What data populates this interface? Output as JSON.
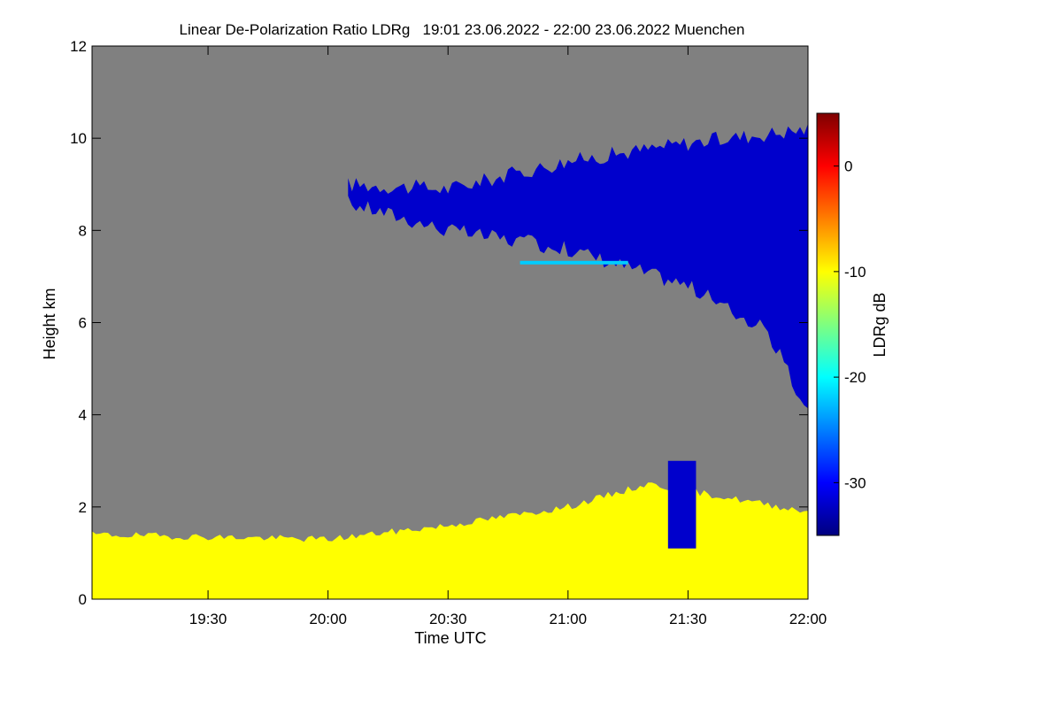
{
  "chart_data": {
    "type": "heatmap",
    "title": "Linear De-Polarization Ratio LDRg   19:01 23.06.2022 - 22:00 23.06.2022 Muenchen",
    "xlabel": "Time UTC",
    "ylabel": "Height km",
    "colorbar_label": "LDRg dB",
    "x_unit": "minutes after 19:00 UTC",
    "xlim": [
      1,
      180
    ],
    "ylim": [
      0,
      12
    ],
    "x_ticks": [
      {
        "value": 30,
        "label": "19:30"
      },
      {
        "value": 60,
        "label": "20:00"
      },
      {
        "value": 90,
        "label": "20:30"
      },
      {
        "value": 120,
        "label": "21:00"
      },
      {
        "value": 150,
        "label": "21:30"
      },
      {
        "value": 180,
        "label": "22:00"
      }
    ],
    "y_ticks": [
      {
        "value": 0,
        "label": "0"
      },
      {
        "value": 2,
        "label": "2"
      },
      {
        "value": 4,
        "label": "4"
      },
      {
        "value": 6,
        "label": "6"
      },
      {
        "value": 8,
        "label": "8"
      },
      {
        "value": 10,
        "label": "10"
      },
      {
        "value": 12,
        "label": "12"
      }
    ],
    "colorbar_range": [
      -35,
      5
    ],
    "colorbar_ticks": [
      {
        "value": 0,
        "label": "0"
      },
      {
        "value": -10,
        "label": "-10"
      },
      {
        "value": -20,
        "label": "-20"
      },
      {
        "value": -30,
        "label": "-30"
      }
    ],
    "background_color": "#808080",
    "colormap": [
      "#00007f",
      "#0000ff",
      "#007fff",
      "#00ffff",
      "#7fff7f",
      "#ffff00",
      "#ff7f00",
      "#ff0000",
      "#7f0000"
    ],
    "features": [
      {
        "name": "cirrus cloud",
        "ldr_db": -32,
        "t_start": 65,
        "t_end": 180,
        "top_km": [
          [
            65,
            9.0
          ],
          [
            90,
            8.9
          ],
          [
            120,
            9.5
          ],
          [
            150,
            9.9
          ],
          [
            180,
            10.2
          ]
        ],
        "base_km": [
          [
            65,
            8.6
          ],
          [
            90,
            8.0
          ],
          [
            120,
            7.6
          ],
          [
            150,
            6.8
          ],
          [
            170,
            5.8
          ],
          [
            180,
            4.0
          ]
        ]
      },
      {
        "name": "thin layer",
        "ldr_db": -22,
        "t_start": 108,
        "t_end": 135,
        "height_km": 7.3
      },
      {
        "name": "boundary layer aerosol",
        "ldr_db": -10,
        "t_start": 1,
        "t_end": 180,
        "top_km": [
          [
            1,
            1.4
          ],
          [
            60,
            1.3
          ],
          [
            90,
            1.6
          ],
          [
            120,
            2.0
          ],
          [
            140,
            2.5
          ],
          [
            180,
            1.9
          ]
        ]
      },
      {
        "name": "precipitation streak",
        "ldr_db": -32,
        "t_start": 145,
        "t_end": 152,
        "height_km": [
          1.1,
          3.0
        ]
      }
    ]
  }
}
